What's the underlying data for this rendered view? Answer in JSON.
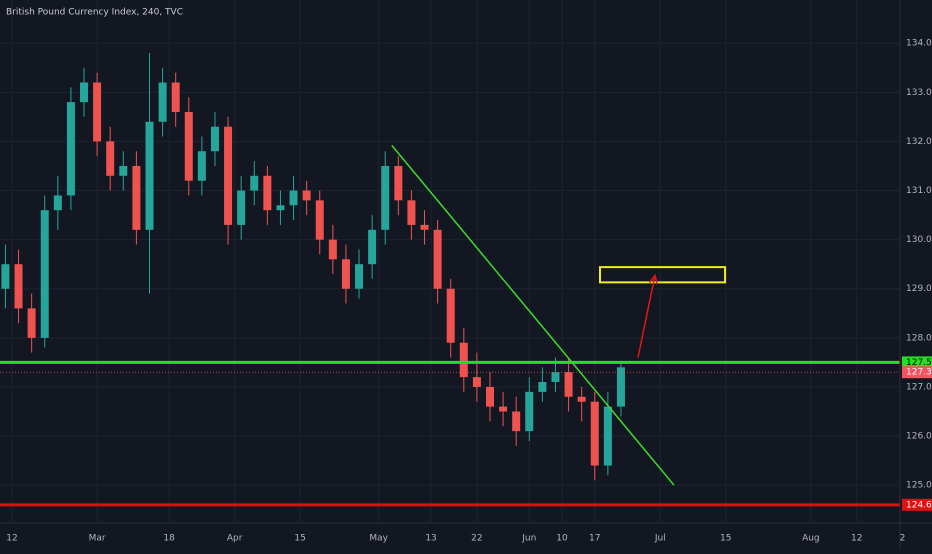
{
  "chart_data": {
    "type": "candlestick",
    "title": "British Pound Currency Index, 240, TVC",
    "x": [
      -1,
      1,
      3,
      5,
      7,
      9,
      11,
      13,
      15,
      17,
      19,
      21,
      23,
      25,
      27,
      29,
      31,
      33,
      35,
      37,
      39,
      41,
      43,
      45,
      47,
      49,
      51,
      53,
      55,
      57,
      59,
      61,
      63,
      65,
      67,
      69,
      71,
      73,
      75,
      77,
      79,
      81,
      83,
      85,
      87,
      89,
      91,
      93
    ],
    "open": [
      129.0,
      129.5,
      128.6,
      128.0,
      130.6,
      130.9,
      132.8,
      133.2,
      132.0,
      131.3,
      131.5,
      130.2,
      132.4,
      133.2,
      132.6,
      131.2,
      131.8,
      132.3,
      130.3,
      131.0,
      131.3,
      130.6,
      130.7,
      131.0,
      130.8,
      130.0,
      129.6,
      129.0,
      129.5,
      130.2,
      131.5,
      130.8,
      130.3,
      130.2,
      129.0,
      127.9,
      127.2,
      127.0,
      126.6,
      126.5,
      126.1,
      126.9,
      127.1,
      127.3,
      126.8,
      126.7,
      125.4,
      126.6
    ],
    "high": [
      129.9,
      129.8,
      128.9,
      130.9,
      131.3,
      133.1,
      133.5,
      133.4,
      132.3,
      131.8,
      131.8,
      133.8,
      133.5,
      133.4,
      132.9,
      132.1,
      132.6,
      132.5,
      131.3,
      131.6,
      131.5,
      131.0,
      131.3,
      131.2,
      131.0,
      130.3,
      129.9,
      129.8,
      130.5,
      131.8,
      131.7,
      131.0,
      130.6,
      130.4,
      129.2,
      128.2,
      127.7,
      127.3,
      126.9,
      126.8,
      127.2,
      127.4,
      127.6,
      127.6,
      127.0,
      126.9,
      126.9,
      127.5
    ],
    "low": [
      128.6,
      128.3,
      127.7,
      127.8,
      130.2,
      130.6,
      132.5,
      131.7,
      131.0,
      131.0,
      129.9,
      128.9,
      132.1,
      132.3,
      130.9,
      130.9,
      131.5,
      129.9,
      130.0,
      130.7,
      130.3,
      130.3,
      130.4,
      130.5,
      129.7,
      129.3,
      128.7,
      128.8,
      129.2,
      129.9,
      130.5,
      130.0,
      129.9,
      128.7,
      127.6,
      126.9,
      126.7,
      126.3,
      126.2,
      125.8,
      125.9,
      126.7,
      126.9,
      126.5,
      126.3,
      125.1,
      125.2,
      126.4
    ],
    "close": [
      129.5,
      128.6,
      128.0,
      130.6,
      130.9,
      132.8,
      133.2,
      132.0,
      131.3,
      131.5,
      130.2,
      132.4,
      133.2,
      132.6,
      131.2,
      131.8,
      132.3,
      130.3,
      131.0,
      131.3,
      130.6,
      130.7,
      131.0,
      130.8,
      130.0,
      129.6,
      129.0,
      129.5,
      130.2,
      131.5,
      130.8,
      130.3,
      130.2,
      129.0,
      127.9,
      127.2,
      127.0,
      126.6,
      126.5,
      126.1,
      126.9,
      127.1,
      127.3,
      126.8,
      126.7,
      125.4,
      126.6,
      127.4
    ],
    "up_color": "#26a69a",
    "down_color": "#ef5350",
    "xlim": [
      -1.83,
      140.5
    ],
    "ylim": [
      124.25,
      134.88
    ],
    "xticks": [
      {
        "value": 0,
        "label": "12"
      },
      {
        "value": 13,
        "label": "Mar"
      },
      {
        "value": 24,
        "label": "18"
      },
      {
        "value": 34,
        "label": "Apr"
      },
      {
        "value": 44,
        "label": "15"
      },
      {
        "value": 56,
        "label": "May"
      },
      {
        "value": 64,
        "label": "13"
      },
      {
        "value": 71,
        "label": "22"
      },
      {
        "value": 79,
        "label": "Jun"
      },
      {
        "value": 84,
        "label": "10"
      },
      {
        "value": 89,
        "label": "17"
      },
      {
        "value": 99,
        "label": "Jul"
      },
      {
        "value": 109,
        "label": "15"
      },
      {
        "value": 122,
        "label": "Aug"
      },
      {
        "value": 129,
        "label": "12"
      },
      {
        "value": 136,
        "label": "2"
      }
    ],
    "yticks": [
      {
        "value": 125,
        "label": "125.0"
      },
      {
        "value": 126,
        "label": "126.0"
      },
      {
        "value": 127,
        "label": "127.0"
      },
      {
        "value": 128,
        "label": "128.0"
      },
      {
        "value": 129,
        "label": "129.0"
      },
      {
        "value": 130,
        "label": "130.0"
      },
      {
        "value": 131,
        "label": "131.0"
      },
      {
        "value": 132,
        "label": "132.0"
      },
      {
        "value": 133,
        "label": "133.0"
      },
      {
        "value": 134,
        "label": "134.0"
      }
    ],
    "grid": true,
    "hlines": [
      {
        "value": 127.5,
        "color": "#22e022"
      },
      {
        "value": 124.6,
        "color": "#e01010"
      },
      {
        "value": 127.3,
        "color": "#f7525f"
      }
    ],
    "trendline": {
      "x": [
        58,
        101.1
      ],
      "y": [
        131.92,
        125.0
      ],
      "color": "#3cdc2a"
    },
    "box": {
      "x": [
        89.8,
        108.9
      ],
      "y": [
        129.13,
        129.44
      ],
      "color": "#f0f020"
    },
    "arrow": {
      "x": [
        95.6,
        98.2
      ],
      "y": [
        127.6,
        129.27
      ],
      "color": "#e01818"
    }
  }
}
